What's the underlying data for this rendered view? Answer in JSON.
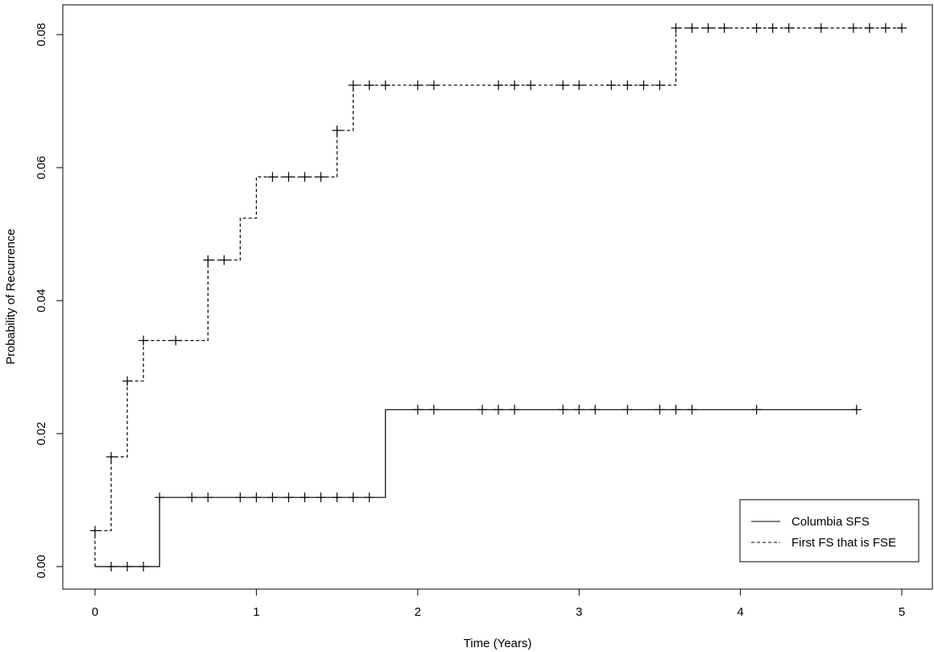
{
  "chart_data": {
    "type": "line",
    "subtype": "step (Kaplan-Meier style cumulative incidence with censoring marks)",
    "xlabel": "Time (Years)",
    "ylabel": "Probability of Recurrence",
    "xlim": [
      0,
      5
    ],
    "ylim": [
      0,
      0.08
    ],
    "xticks": [
      "0",
      "1",
      "2",
      "3",
      "4",
      "5"
    ],
    "yticks": [
      "0.00",
      "0.02",
      "0.04",
      "0.06",
      "0.08"
    ],
    "grid": false,
    "legend_position": "bottom-right",
    "series": [
      {
        "name": "Columbia SFS",
        "linestyle": "solid",
        "color": "#000000",
        "steps": [
          [
            0,
            0.0
          ],
          [
            0.4,
            0.0104
          ],
          [
            1.8,
            0.0236
          ]
        ],
        "end_x": 4.72,
        "censor_marks": [
          [
            0.1,
            0.0
          ],
          [
            0.2,
            0.0
          ],
          [
            0.3,
            0.0
          ],
          [
            0.4,
            0.0104
          ],
          [
            0.6,
            0.0104
          ],
          [
            0.7,
            0.0104
          ],
          [
            0.9,
            0.0104
          ],
          [
            1.0,
            0.0104
          ],
          [
            1.1,
            0.0104
          ],
          [
            1.2,
            0.0104
          ],
          [
            1.3,
            0.0104
          ],
          [
            1.4,
            0.0104
          ],
          [
            1.5,
            0.0104
          ],
          [
            1.6,
            0.0104
          ],
          [
            1.7,
            0.0104
          ],
          [
            2.0,
            0.0236
          ],
          [
            2.1,
            0.0236
          ],
          [
            2.4,
            0.0236
          ],
          [
            2.5,
            0.0236
          ],
          [
            2.6,
            0.0236
          ],
          [
            2.9,
            0.0236
          ],
          [
            3.0,
            0.0236
          ],
          [
            3.1,
            0.0236
          ],
          [
            3.3,
            0.0236
          ],
          [
            3.5,
            0.0236
          ],
          [
            3.6,
            0.0236
          ],
          [
            3.7,
            0.0236
          ],
          [
            4.1,
            0.0236
          ],
          [
            4.72,
            0.0236
          ]
        ]
      },
      {
        "name": "First FS that is FSE",
        "linestyle": "dashed",
        "color": "#000000",
        "steps": [
          [
            0,
            0.0054
          ],
          [
            0.1,
            0.0165
          ],
          [
            0.2,
            0.0279
          ],
          [
            0.3,
            0.034
          ],
          [
            0.7,
            0.0461
          ],
          [
            0.9,
            0.0524
          ],
          [
            1.0,
            0.0586
          ],
          [
            1.5,
            0.0656
          ],
          [
            1.6,
            0.0724
          ],
          [
            3.6,
            0.081
          ]
        ],
        "start_y": 0.0,
        "end_x": 5.0,
        "censor_marks": [
          [
            0,
            0.0054
          ],
          [
            0.1,
            0.0165
          ],
          [
            0.2,
            0.0279
          ],
          [
            0.3,
            0.034
          ],
          [
            0.5,
            0.034
          ],
          [
            0.7,
            0.0461
          ],
          [
            0.8,
            0.0461
          ],
          [
            1.1,
            0.0586
          ],
          [
            1.2,
            0.0586
          ],
          [
            1.3,
            0.0586
          ],
          [
            1.4,
            0.0586
          ],
          [
            1.5,
            0.0656
          ],
          [
            1.6,
            0.0724
          ],
          [
            1.7,
            0.0724
          ],
          [
            1.8,
            0.0724
          ],
          [
            2.0,
            0.0724
          ],
          [
            2.1,
            0.0724
          ],
          [
            2.5,
            0.0724
          ],
          [
            2.6,
            0.0724
          ],
          [
            2.7,
            0.0724
          ],
          [
            2.9,
            0.0724
          ],
          [
            3.0,
            0.0724
          ],
          [
            3.2,
            0.0724
          ],
          [
            3.3,
            0.0724
          ],
          [
            3.4,
            0.0724
          ],
          [
            3.5,
            0.0724
          ],
          [
            3.6,
            0.081
          ],
          [
            3.7,
            0.081
          ],
          [
            3.8,
            0.081
          ],
          [
            3.9,
            0.081
          ],
          [
            4.1,
            0.081
          ],
          [
            4.2,
            0.081
          ],
          [
            4.3,
            0.081
          ],
          [
            4.5,
            0.081
          ],
          [
            4.7,
            0.081
          ],
          [
            4.8,
            0.081
          ],
          [
            4.9,
            0.081
          ],
          [
            5.0,
            0.081
          ]
        ]
      }
    ]
  }
}
